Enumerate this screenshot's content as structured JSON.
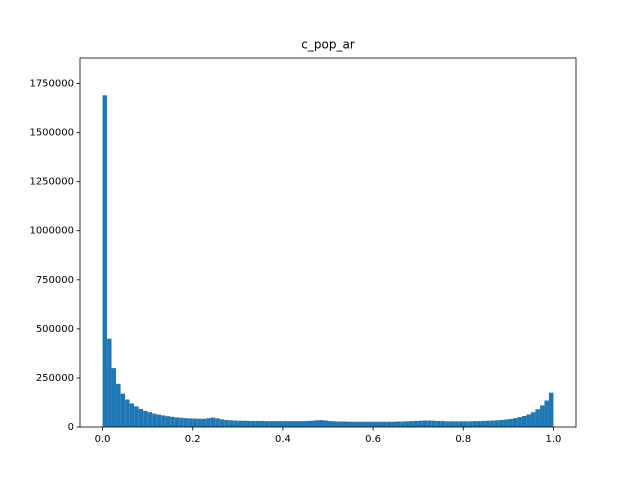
{
  "chart_data": {
    "type": "histogram",
    "title": "c_pop_ar",
    "color": "#1f77b4",
    "bins": [
      0,
      0.01,
      0.02,
      0.03,
      0.04,
      0.05,
      0.06,
      0.07,
      0.08,
      0.09,
      0.1,
      0.11,
      0.12,
      0.13,
      0.14,
      0.15,
      0.16,
      0.17,
      0.18,
      0.19,
      0.2,
      0.21,
      0.22,
      0.23,
      0.24,
      0.25,
      0.26,
      0.27,
      0.28,
      0.29,
      0.3,
      0.31,
      0.32,
      0.33,
      0.34,
      0.35,
      0.36,
      0.37,
      0.38,
      0.39,
      0.4,
      0.41,
      0.42,
      0.43,
      0.44,
      0.45,
      0.46,
      0.47,
      0.48,
      0.49,
      0.5,
      0.51,
      0.52,
      0.53,
      0.54,
      0.55,
      0.56,
      0.57,
      0.58,
      0.59,
      0.6,
      0.61,
      0.62,
      0.63,
      0.64,
      0.65,
      0.66,
      0.67,
      0.68,
      0.69,
      0.7,
      0.71,
      0.72,
      0.73,
      0.74,
      0.75,
      0.76,
      0.77,
      0.78,
      0.79,
      0.8,
      0.81,
      0.82,
      0.83,
      0.84,
      0.85,
      0.86,
      0.87,
      0.88,
      0.89,
      0.9,
      0.91,
      0.92,
      0.93,
      0.94,
      0.95,
      0.96,
      0.97,
      0.98,
      0.99,
      1
    ],
    "values": [
      1690000,
      450000,
      300000,
      220000,
      170000,
      140000,
      120000,
      105000,
      92000,
      82000,
      75000,
      68000,
      63000,
      59000,
      55000,
      52000,
      49000,
      47000,
      45000,
      44000,
      43000,
      42000,
      42000,
      45000,
      48000,
      44000,
      39000,
      36000,
      34000,
      33000,
      32000,
      32000,
      31000,
      31000,
      31000,
      31000,
      30000,
      30000,
      30000,
      30000,
      30000,
      30000,
      30000,
      30000,
      30000,
      31000,
      32000,
      34000,
      35000,
      33000,
      30000,
      29000,
      28000,
      28000,
      27000,
      27000,
      27000,
      27000,
      27000,
      27000,
      27000,
      27000,
      27000,
      27000,
      27000,
      28000,
      28000,
      29000,
      30000,
      31000,
      32000,
      33000,
      33000,
      32000,
      31000,
      30000,
      29000,
      29000,
      29000,
      29000,
      29000,
      29000,
      30000,
      30000,
      31000,
      32000,
      33000,
      34000,
      36000,
      38000,
      41000,
      45000,
      50000,
      56000,
      64000,
      75000,
      90000,
      110000,
      135000,
      175000
    ],
    "xlim": [
      -0.05,
      1.05
    ],
    "xticks": [
      {
        "value": 0,
        "label": "0.0"
      },
      0.2,
      0.4,
      0.6,
      0.8,
      {
        "value": 1,
        "label": "1.0"
      }
    ],
    "ylim": [
      0,
      1880000
    ],
    "yticks": [
      0,
      250000,
      500000,
      750000,
      1000000,
      1250000,
      1500000,
      1750000
    ]
  }
}
